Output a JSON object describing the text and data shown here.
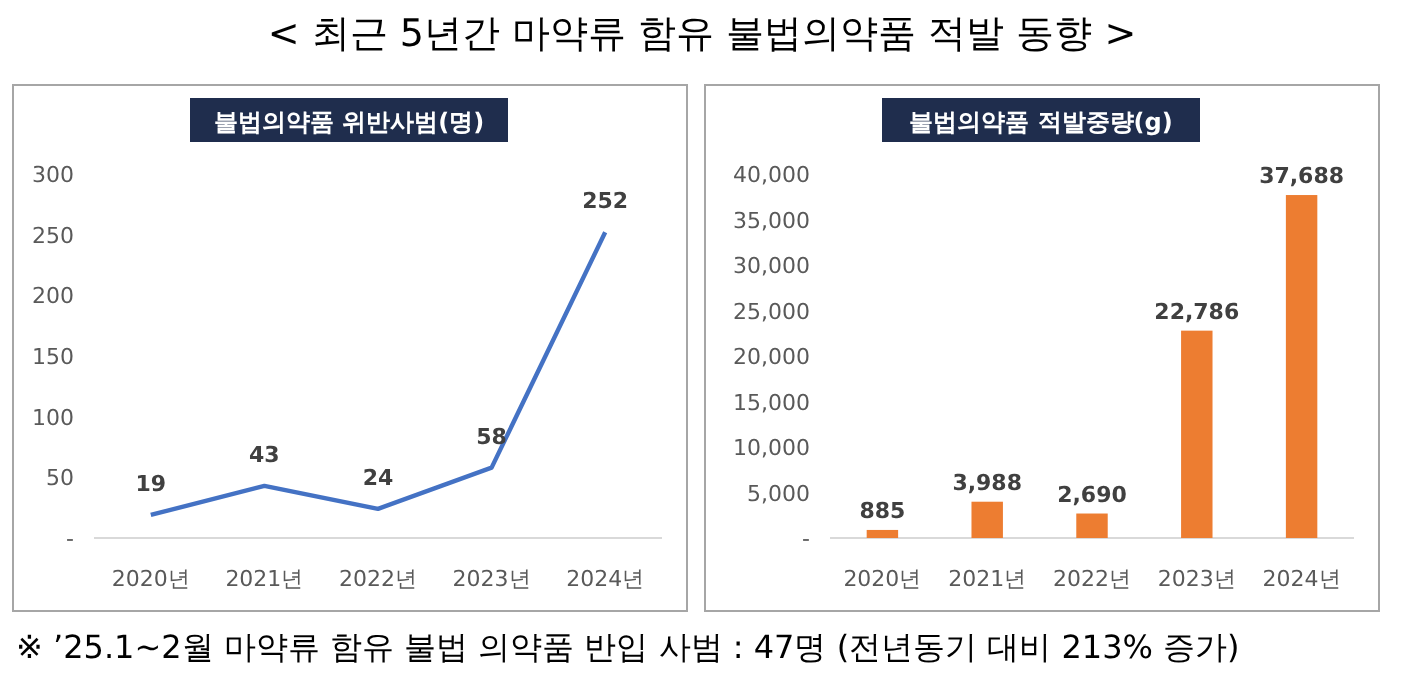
{
  "chart_data": [
    {
      "type": "other",
      "title": "< 최근 5년간 마약류 함유 불법의약품 적발 동향 >",
      "annotations": [
        "※ ’25.1~2월 마약류 함유 불법 의약품 반입 사범 : 47명 (전년동기 대비 213% 증가)"
      ]
    },
    {
      "type": "line",
      "title": "불법의약품 위반사범(명)",
      "categories": [
        "2020년",
        "2021년",
        "2022년",
        "2023년",
        "2024년"
      ],
      "values": [
        19,
        43,
        24,
        58,
        252
      ],
      "color": "#4472c4",
      "ylim": [
        0,
        300
      ],
      "yticks": [
        {
          "value": 0,
          "label": "-"
        },
        50,
        100,
        150,
        200,
        250,
        300
      ],
      "data_labels": true
    },
    {
      "type": "bar",
      "title": "불법의약품 적발중량(g)",
      "categories": [
        "2020년",
        "2021년",
        "2022년",
        "2023년",
        "2024년"
      ],
      "values": [
        885,
        3988,
        2690,
        22786,
        37688
      ],
      "value_labels": [
        "885",
        "3,988",
        "2,690",
        "22,786",
        "37,688"
      ],
      "color": "#ed7d31",
      "ylim": [
        0,
        40000
      ],
      "yticks": [
        {
          "value": 0,
          "label": "-"
        },
        {
          "value": 5000,
          "label": "5,000"
        },
        {
          "value": 10000,
          "label": "10,000"
        },
        {
          "value": 15000,
          "label": "15,000"
        },
        {
          "value": 20000,
          "label": "20,000"
        },
        {
          "value": 25000,
          "label": "25,000"
        },
        {
          "value": 30000,
          "label": "30,000"
        },
        {
          "value": 35000,
          "label": "35,000"
        },
        {
          "value": 40000,
          "label": "40,000"
        }
      ]
    }
  ]
}
